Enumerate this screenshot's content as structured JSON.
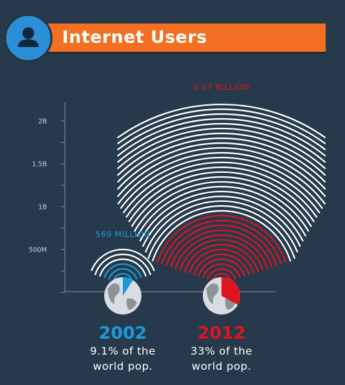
{
  "header": {
    "title": "Internet Users",
    "icon": "user-icon",
    "accent": "#f36f21",
    "icon_bg": "#2a8fd7"
  },
  "chart_data": {
    "type": "bar",
    "categories": [
      "2002",
      "2012"
    ],
    "values": [
      569000000,
      2270000000
    ],
    "value_labels": [
      "569 MILLION",
      "2.27 BILLION"
    ],
    "ylim": [
      0,
      2500000000
    ],
    "y_ticks": [
      {
        "value": 500000000,
        "label": "500M"
      },
      {
        "value": 1000000000,
        "label": "1B"
      },
      {
        "value": 1500000000,
        "label": "1.5B"
      },
      {
        "value": 2000000000,
        "label": "2B"
      }
    ],
    "colors": [
      "#1a9ad9",
      "#e0141e"
    ],
    "world_share_percent": [
      9.1,
      33
    ],
    "captions": [
      {
        "year": "2002",
        "line1": "9.1% of the",
        "line2": "world pop."
      },
      {
        "year": "2012",
        "line1": "33% of the",
        "line2": "world pop."
      }
    ]
  }
}
